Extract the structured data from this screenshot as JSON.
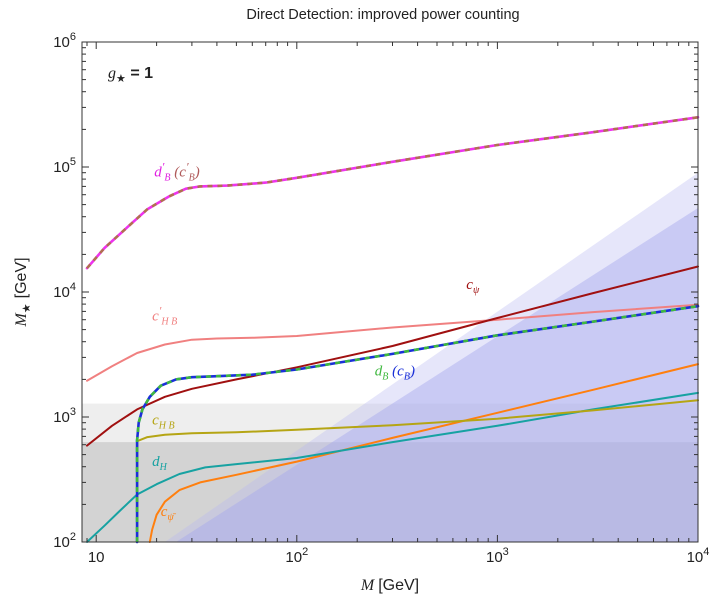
{
  "chart_data": {
    "type": "line",
    "title": "Direct Detection: improved power counting",
    "xlabel": {
      "sym": "M",
      "unit": "[GeV]"
    },
    "ylabel": {
      "sym": "M",
      "sub": "★",
      "unit": "[GeV]"
    },
    "xscale": "log",
    "yscale": "log",
    "xlim": [
      8.5,
      10000
    ],
    "ylim": [
      100,
      1000000
    ],
    "grid": false,
    "legend": "none",
    "annotation": {
      "sym": "g",
      "sub": "★",
      "rest": " = 1"
    },
    "x_ticks": [
      {
        "v": 10,
        "base": "10",
        "exp": ""
      },
      {
        "v": 100,
        "base": "10",
        "exp": "2"
      },
      {
        "v": 1000,
        "base": "10",
        "exp": "3"
      },
      {
        "v": 10000,
        "base": "10",
        "exp": "4"
      }
    ],
    "y_ticks": [
      {
        "v": 100,
        "base": "10",
        "exp": "2"
      },
      {
        "v": 1000,
        "base": "10",
        "exp": "3"
      },
      {
        "v": 10000,
        "base": "10",
        "exp": "4"
      },
      {
        "v": 100000,
        "base": "10",
        "exp": "5"
      },
      {
        "v": 1000000,
        "base": "10",
        "exp": "6"
      }
    ],
    "regions": [
      {
        "kind": "rect",
        "x": [
          8.5,
          10000
        ],
        "y": [
          100,
          1280
        ],
        "color": "#d9d9d9",
        "opacity": 0.45
      },
      {
        "kind": "rect",
        "x": [
          8.5,
          10000
        ],
        "y": [
          100,
          630
        ],
        "color": "#bdbdbd",
        "opacity": 0.55
      },
      {
        "kind": "poly",
        "points": [
          [
            22,
            100
          ],
          [
            10000,
            90000
          ],
          [
            10000,
            100
          ]
        ],
        "color": "#b6b8f0",
        "opacity": 0.35
      },
      {
        "kind": "poly",
        "points": [
          [
            25,
            100
          ],
          [
            10000,
            47000
          ],
          [
            10000,
            100
          ]
        ],
        "color": "#a7a9ee",
        "opacity": 0.45
      }
    ],
    "series": [
      {
        "name": "c'_{HB}",
        "color": "#f08080",
        "width": 2,
        "points": [
          [
            9,
            1950
          ],
          [
            12,
            2550
          ],
          [
            16,
            3250
          ],
          [
            22,
            3800
          ],
          [
            30,
            4150
          ],
          [
            40,
            4250
          ],
          [
            60,
            4300
          ],
          [
            100,
            4450
          ],
          [
            300,
            5200
          ],
          [
            1000,
            6000
          ],
          [
            3000,
            6900
          ],
          [
            10000,
            7900
          ]
        ]
      },
      {
        "name": "c_ψ",
        "color": "#a01010",
        "width": 2,
        "points": [
          [
            9,
            590
          ],
          [
            12,
            850
          ],
          [
            16,
            1150
          ],
          [
            22,
            1450
          ],
          [
            30,
            1680
          ],
          [
            50,
            2000
          ],
          [
            100,
            2500
          ],
          [
            300,
            3700
          ],
          [
            1000,
            6200
          ],
          [
            3000,
            9800
          ],
          [
            10000,
            16000
          ]
        ]
      },
      {
        "name": "c_ψ̄",
        "color": "#ff7f0e",
        "width": 2,
        "points": [
          [
            18.5,
            100
          ],
          [
            19,
            125
          ],
          [
            20,
            165
          ],
          [
            22,
            210
          ],
          [
            26,
            260
          ],
          [
            33,
            300
          ],
          [
            50,
            345
          ],
          [
            100,
            440
          ],
          [
            300,
            680
          ],
          [
            1000,
            1080
          ],
          [
            3000,
            1650
          ],
          [
            10000,
            2650
          ]
        ]
      },
      {
        "name": "d_H",
        "color": "#17a2a2",
        "width": 2,
        "points": [
          [
            9,
            100
          ],
          [
            11,
            135
          ],
          [
            13,
            175
          ],
          [
            16,
            240
          ],
          [
            20,
            290
          ],
          [
            26,
            350
          ],
          [
            35,
            395
          ],
          [
            50,
            420
          ],
          [
            100,
            470
          ],
          [
            300,
            630
          ],
          [
            1000,
            850
          ],
          [
            3000,
            1150
          ],
          [
            10000,
            1560
          ]
        ]
      },
      {
        "name": "c_{HB}",
        "color": "#b5a514",
        "width": 2,
        "points": [
          [
            16,
            100
          ],
          [
            16,
            640
          ],
          [
            18,
            690
          ],
          [
            22,
            720
          ],
          [
            30,
            740
          ],
          [
            50,
            755
          ],
          [
            100,
            790
          ],
          [
            300,
            860
          ],
          [
            1000,
            970
          ],
          [
            3000,
            1130
          ],
          [
            10000,
            1360
          ]
        ]
      },
      {
        "name": "d_B (c_B)",
        "color": "#1a30d8",
        "width": 2.6,
        "dash_color": "#3fb83f",
        "points": [
          [
            16,
            100
          ],
          [
            16,
            650
          ],
          [
            16.3,
            900
          ],
          [
            17,
            1150
          ],
          [
            18.5,
            1450
          ],
          [
            21,
            1780
          ],
          [
            25,
            2000
          ],
          [
            30,
            2080
          ],
          [
            40,
            2120
          ],
          [
            60,
            2180
          ],
          [
            100,
            2400
          ],
          [
            300,
            3200
          ],
          [
            1000,
            4500
          ],
          [
            3000,
            5800
          ],
          [
            10000,
            7700
          ]
        ]
      },
      {
        "name": "d'_B (c'_B)",
        "color": "#ee33ee",
        "width": 2.6,
        "dash_color": "#b07050",
        "points": [
          [
            9,
            15500
          ],
          [
            11,
            22500
          ],
          [
            14,
            32000
          ],
          [
            18,
            46000
          ],
          [
            23,
            58000
          ],
          [
            28,
            67000
          ],
          [
            33,
            70000
          ],
          [
            45,
            71000
          ],
          [
            70,
            75000
          ],
          [
            100,
            82000
          ],
          [
            300,
            110000
          ],
          [
            1000,
            150000
          ],
          [
            3000,
            190000
          ],
          [
            10000,
            250000
          ]
        ]
      }
    ],
    "labels": [
      {
        "sym": "d",
        "sub": "B",
        "prime": true,
        "paren_sym": "c",
        "paren_sub": "B",
        "paren_prime": true,
        "x": 19.5,
        "y": 84000,
        "color": "#e020e0",
        "paren_color": "#b05a5a"
      },
      {
        "sym": "c",
        "sub": "H B",
        "prime": true,
        "x": 19,
        "y": 5900,
        "color": "#f08080"
      },
      {
        "sym": "c",
        "sub": "ψ",
        "x": 700,
        "y": 10600,
        "color": "#a01010"
      },
      {
        "sym": "d",
        "sub": "B",
        "paren_sym": "c",
        "paren_sub": "B",
        "x": 245,
        "y": 2140,
        "color": "#3fb83f",
        "paren_color": "#1a30d8"
      },
      {
        "sym": "c",
        "sub": "H B",
        "x": 19,
        "y": 870,
        "color": "#b5a514"
      },
      {
        "sym": "d",
        "sub": "H",
        "x": 19,
        "y": 405,
        "color": "#17a2a2"
      },
      {
        "sym": "c",
        "sub": "ψ̄",
        "x": 21,
        "y": 162,
        "color": "#ff7f0e"
      }
    ]
  }
}
